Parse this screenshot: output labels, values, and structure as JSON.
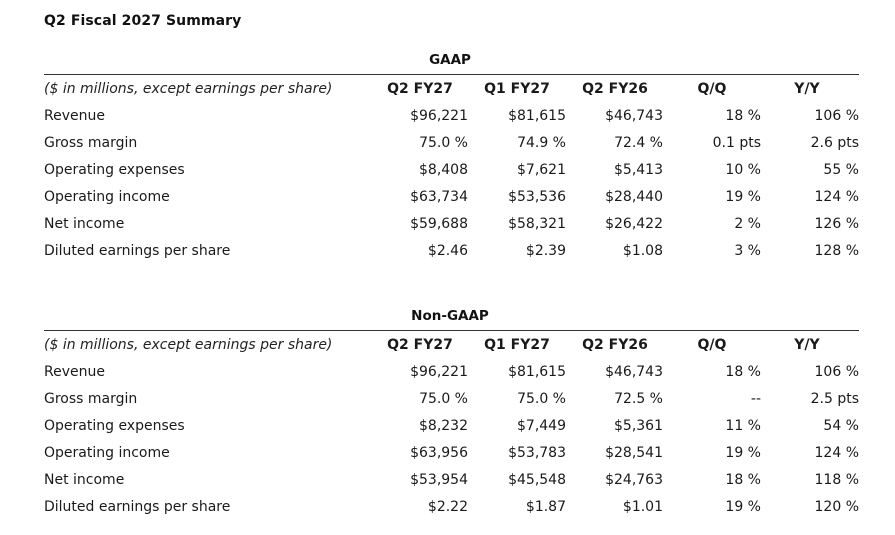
{
  "title": "Q2 Fiscal 2027 Summary",
  "sections": [
    {
      "heading": "GAAP",
      "header": {
        "label": "($ in millions, except earnings per share)",
        "columns": [
          "Q2 FY27",
          "Q1 FY27",
          "Q2 FY26",
          "Q/Q",
          "Y/Y"
        ]
      },
      "rows": [
        {
          "label": "Revenue",
          "values": [
            "$96,221",
            "$81,615",
            "$46,743",
            "18 %",
            "106 %"
          ]
        },
        {
          "label": "Gross margin",
          "values": [
            "75.0 %",
            "74.9 %",
            "72.4 %",
            "0.1 pts",
            "2.6 pts"
          ]
        },
        {
          "label": "Operating expenses",
          "values": [
            "$8,408",
            "$7,621",
            "$5,413",
            "10 %",
            "55 %"
          ]
        },
        {
          "label": "Operating income",
          "values": [
            "$63,734",
            "$53,536",
            "$28,440",
            "19 %",
            "124 %"
          ]
        },
        {
          "label": "Net income",
          "values": [
            "$59,688",
            "$58,321",
            "$26,422",
            "2 %",
            "126 %"
          ]
        },
        {
          "label": "Diluted earnings per share",
          "values": [
            "$2.46",
            "$2.39",
            "$1.08",
            "3 %",
            "128 %"
          ]
        }
      ]
    },
    {
      "heading": "Non-GAAP",
      "header": {
        "label": "($ in millions, except earnings per share)",
        "columns": [
          "Q2 FY27",
          "Q1 FY27",
          "Q2 FY26",
          "Q/Q",
          "Y/Y"
        ]
      },
      "rows": [
        {
          "label": "Revenue",
          "values": [
            "$96,221",
            "$81,615",
            "$46,743",
            "18 %",
            "106 %"
          ]
        },
        {
          "label": "Gross margin",
          "values": [
            "75.0 %",
            "75.0 %",
            "72.5 %",
            "--",
            "2.5 pts"
          ]
        },
        {
          "label": "Operating expenses",
          "values": [
            "$8,232",
            "$7,449",
            "$5,361",
            "11 %",
            "54 %"
          ]
        },
        {
          "label": "Operating income",
          "values": [
            "$63,956",
            "$53,783",
            "$28,541",
            "19 %",
            "124 %"
          ]
        },
        {
          "label": "Net income",
          "values": [
            "$53,954",
            "$45,548",
            "$24,763",
            "18 %",
            "118 %"
          ]
        },
        {
          "label": "Diluted earnings per share",
          "values": [
            "$2.22",
            "$1.87",
            "$1.01",
            "19 %",
            "120 %"
          ]
        }
      ]
    }
  ]
}
